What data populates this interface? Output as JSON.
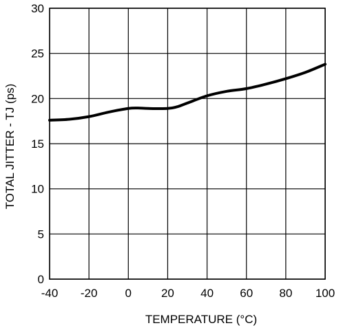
{
  "chart_data": {
    "type": "line",
    "title": "",
    "xlabel": "TEMPERATURE (°C)",
    "ylabel": "TOTAL JITTER - TJ (ps)",
    "xlim": [
      -40,
      100
    ],
    "ylim": [
      0,
      30
    ],
    "x_ticks": [
      "-40",
      "-20",
      "0",
      "20",
      "40",
      "60",
      "80",
      "100"
    ],
    "y_ticks": [
      "0",
      "5",
      "10",
      "15",
      "20",
      "25",
      "30"
    ],
    "grid": true,
    "series": [
      {
        "x": [
          -40,
          -30,
          -20,
          -10,
          0,
          5,
          10,
          20,
          25,
          30,
          40,
          50,
          60,
          70,
          80,
          90,
          100
        ],
        "y": [
          17.6,
          17.7,
          18.0,
          18.5,
          18.9,
          18.95,
          18.9,
          18.9,
          19.1,
          19.5,
          20.3,
          20.8,
          21.1,
          21.6,
          22.2,
          22.9,
          23.8
        ]
      }
    ]
  }
}
